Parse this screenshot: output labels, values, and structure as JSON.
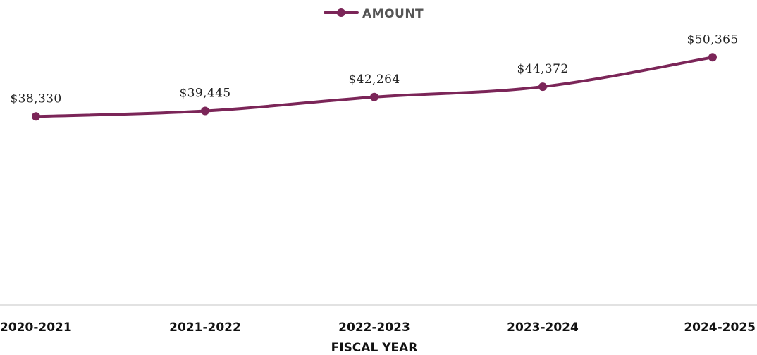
{
  "colors": {
    "series": "#7b2558",
    "axis": "#d9d9d9",
    "text": "#111111"
  },
  "chart_data": {
    "type": "line",
    "title": "",
    "xlabel": "FISCAL YEAR",
    "ylabel": "",
    "categories": [
      "2020-2021",
      "2021-2022",
      "2022-2023",
      "2023-2024",
      "2024-2025"
    ],
    "series": [
      {
        "name": "AMOUNT",
        "values": [
          38330,
          39445,
          42264,
          44372,
          50365
        ],
        "labels": [
          "$38,330",
          "$39,445",
          "$42,264",
          "$44,372",
          "$50,365"
        ]
      }
    ],
    "ylim": [
      0,
      62000
    ],
    "grid": false,
    "legend": "top-center",
    "line_shape": "smooth",
    "markers": true
  }
}
